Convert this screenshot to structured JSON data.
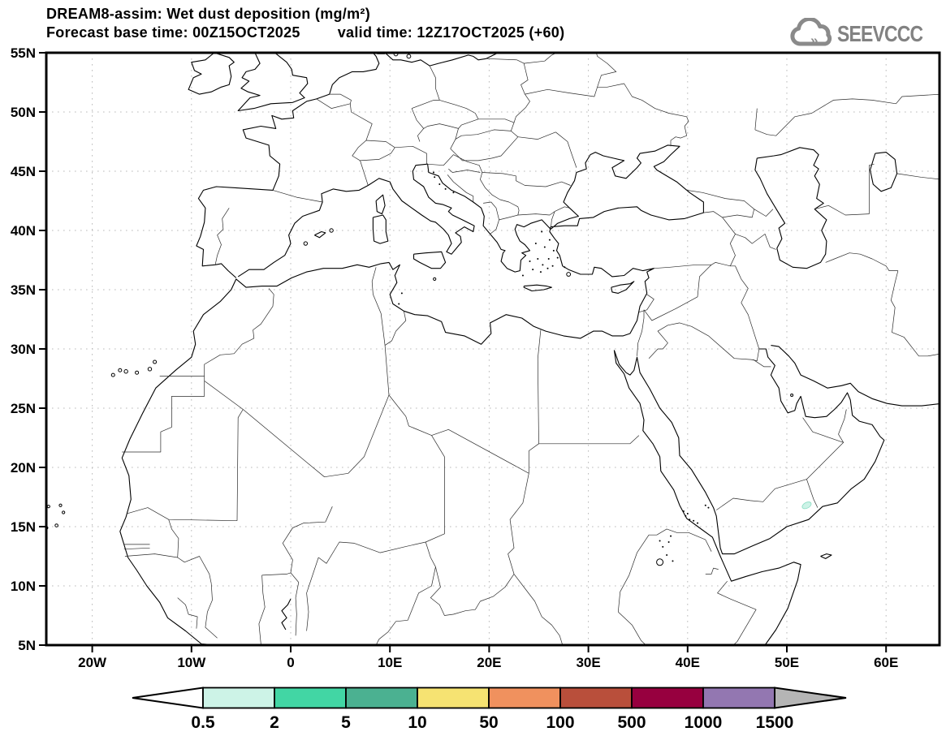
{
  "header": {
    "line1": "DREAM8-assim: Wet dust deposition (mg/m²)",
    "base_time": "Forecast base time: 00Z15OCT2025",
    "valid_time": "valid time: 12Z17OCT2025 (+60)"
  },
  "branding": {
    "logo_text": "SEEVCCC",
    "logo_color": "#828282",
    "cloud_icon": "cloud-with-double-chevron"
  },
  "axes": {
    "lat_ticks": [
      {
        "label": "55N",
        "value": 55
      },
      {
        "label": "50N",
        "value": 50
      },
      {
        "label": "45N",
        "value": 45
      },
      {
        "label": "40N",
        "value": 40
      },
      {
        "label": "35N",
        "value": 35
      },
      {
        "label": "30N",
        "value": 30
      },
      {
        "label": "25N",
        "value": 25
      },
      {
        "label": "20N",
        "value": 20
      },
      {
        "label": "15N",
        "value": 15
      },
      {
        "label": "10N",
        "value": 10
      },
      {
        "label": "5N",
        "value": 5
      }
    ],
    "lon_ticks": [
      {
        "label": "20W",
        "value": -20
      },
      {
        "label": "10W",
        "value": -10
      },
      {
        "label": "0",
        "value": 0
      },
      {
        "label": "10E",
        "value": 10
      },
      {
        "label": "20E",
        "value": 20
      },
      {
        "label": "30E",
        "value": 30
      },
      {
        "label": "40E",
        "value": 40
      },
      {
        "label": "50E",
        "value": 50
      },
      {
        "label": "60E",
        "value": 60
      }
    ]
  },
  "colorbar": {
    "levels": [
      "0.5",
      "2",
      "5",
      "10",
      "50",
      "100",
      "500",
      "1000",
      "1500"
    ],
    "segment_colors": [
      "#cdf3e7",
      "#42d6a4",
      "#4bb191",
      "#f6e372",
      "#f0915e",
      "#b94f3b",
      "#97003f",
      "#9377b1"
    ],
    "under_arrow_color": "#ffffff",
    "over_arrow_color": "#b5b5b5"
  },
  "chart_data": {
    "type": "filled-contour-map",
    "title": "DREAM8-assim: Wet dust deposition (mg/m²)",
    "forecast_base_time": "00Z15OCT2025",
    "valid_time": "12Z17OCT2025",
    "forecast_hour": "+60",
    "units": "mg/m²",
    "region": {
      "lon_min_deg": -24.7,
      "lon_max_deg": 65.5,
      "lat_min_deg": 5,
      "lat_max_deg": 55
    },
    "lon_tick_labels": [
      "20W",
      "10W",
      "0",
      "10E",
      "20E",
      "30E",
      "40E",
      "50E",
      "60E"
    ],
    "lat_tick_labels": [
      "55N",
      "50N",
      "45N",
      "40N",
      "35N",
      "30N",
      "25N",
      "20N",
      "15N",
      "10N",
      "5N"
    ],
    "scale_levels_mg_m2": [
      0.5,
      2,
      5,
      10,
      50,
      100,
      500,
      1000,
      1500
    ],
    "scale_colors": [
      "#cdf3e7",
      "#42d6a4",
      "#4bb191",
      "#f6e372",
      "#f0915e",
      "#b94f3b",
      "#97003f",
      "#9377b1"
    ],
    "grid": "dotted graticule: 5° latitude, 10° longitude",
    "legend_position": "bottom",
    "deposition_features": [
      {
        "lon_deg": 52.0,
        "lat_deg": 16.8,
        "value_range_mg_m2": "0.5–2",
        "note": "small pale-cyan wet deposition patch on south Arabian coast near Yemen–Oman border"
      }
    ]
  }
}
